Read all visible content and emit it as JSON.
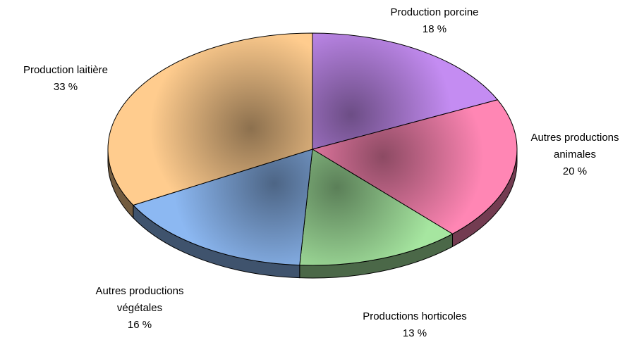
{
  "chart_data": {
    "type": "pie",
    "categories": [
      "Production porcine",
      "Autres productions animales",
      "Productions horticoles",
      "Autres productions végétales",
      "Production laitière"
    ],
    "values": [
      18,
      20,
      13,
      16,
      33
    ],
    "value_labels": [
      "18 %",
      "20 %",
      "13 %",
      "16 %",
      "33 %"
    ],
    "colors": [
      "#c48cf2",
      "#ff86b4",
      "#a6e6a0",
      "#8cb8f2",
      "#ffcc8e"
    ]
  }
}
